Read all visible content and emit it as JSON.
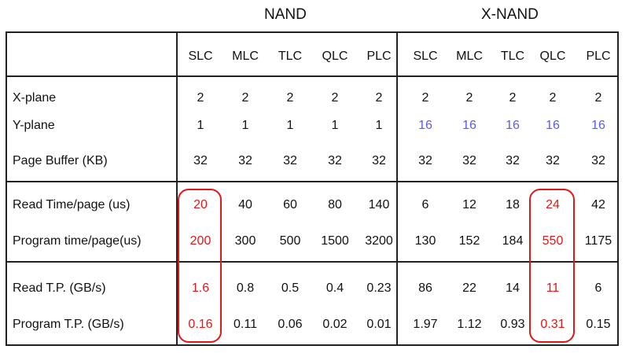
{
  "groups": {
    "nand": "NAND",
    "xnand": "X-NAND"
  },
  "columns": [
    "SLC",
    "MLC",
    "TLC",
    "QLC",
    "PLC",
    "SLC",
    "MLC",
    "TLC",
    "QLC",
    "PLC"
  ],
  "rows": [
    {
      "label": "X-plane",
      "values": [
        "2",
        "2",
        "2",
        "2",
        "2",
        "2",
        "2",
        "2",
        "2",
        "2"
      ]
    },
    {
      "label": "Y-plane",
      "values": [
        "1",
        "1",
        "1",
        "1",
        "1",
        "16",
        "16",
        "16",
        "16",
        "16"
      ]
    },
    {
      "label": "Page Buffer (KB)",
      "values": [
        "32",
        "32",
        "32",
        "32",
        "32",
        "32",
        "32",
        "32",
        "32",
        "32"
      ]
    },
    {
      "label": "Read Time/page (us)",
      "values": [
        "20",
        "40",
        "60",
        "80",
        "140",
        "6",
        "12",
        "18",
        "24",
        "42"
      ]
    },
    {
      "label": "Program time/page(us)",
      "values": [
        "200",
        "300",
        "500",
        "1500",
        "3200",
        "130",
        "152",
        "184",
        "550",
        "1175"
      ]
    },
    {
      "label": "Read T.P. (GB/s)",
      "values": [
        "1.6",
        "0.8",
        "0.5",
        "0.4",
        "0.23",
        "86",
        "22",
        "14",
        "11",
        "6"
      ]
    },
    {
      "label": "Program T.P. (GB/s)",
      "values": [
        "0.16",
        "0.11",
        "0.06",
        "0.02",
        "0.01",
        "1.97",
        "1.12",
        "0.93",
        "0.31",
        "0.15"
      ]
    }
  ],
  "colors": {
    "blue_values": "#5b5be6",
    "highlight_red": "#e01818",
    "grid": "#222222"
  }
}
